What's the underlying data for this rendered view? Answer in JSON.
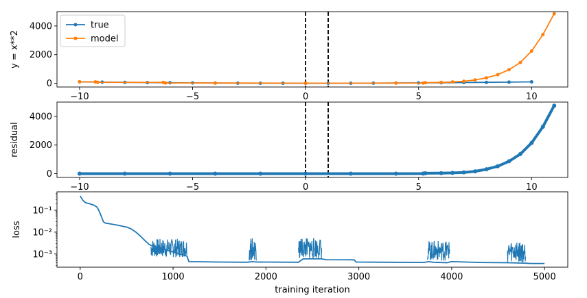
{
  "chart_data": [
    {
      "type": "line",
      "ylabel": "y = x**2",
      "xlabel": "",
      "xlim": [
        -11,
        11.6
      ],
      "ylim": [
        -260,
        5000
      ],
      "xticks": [
        -10,
        -5,
        0,
        5,
        10
      ],
      "yticks": [
        0,
        2000,
        4000
      ],
      "vlines": [
        0,
        1
      ],
      "legend": {
        "placement": "top-left",
        "entries": [
          "true",
          "model"
        ]
      },
      "series": [
        {
          "name": "true",
          "color": "#1f77b4",
          "x": [
            -10,
            -9,
            -8,
            -7,
            -6,
            -5,
            -4,
            -3,
            -2,
            -1,
            0,
            1,
            2,
            3,
            4,
            5,
            6,
            7,
            8,
            9,
            10
          ],
          "values": [
            100,
            81,
            64,
            49,
            36,
            25,
            16,
            9,
            4,
            1,
            0,
            1,
            4,
            9,
            16,
            25,
            36,
            49,
            64,
            81,
            100
          ]
        },
        {
          "name": "model",
          "color": "#ff7f0e",
          "x": [
            -10,
            -9.3,
            -9.2,
            -6.3,
            -6.2,
            -4,
            0,
            4,
            5.2,
            5.3,
            6,
            6.5,
            7,
            7.5,
            8,
            8.5,
            9,
            9.5,
            10,
            10.5,
            11
          ],
          "values": [
            105,
            95,
            70,
            60,
            20,
            15,
            10,
            12,
            15,
            40,
            60,
            90,
            140,
            230,
            380,
            600,
            950,
            1450,
            2250,
            3400,
            4850
          ]
        }
      ]
    },
    {
      "type": "scatter",
      "ylabel": "residual",
      "xlabel": "",
      "xlim": [
        -11,
        11.6
      ],
      "ylim": [
        -260,
        5000
      ],
      "xticks": [
        -10,
        -5,
        0,
        5,
        10
      ],
      "yticks": [
        0,
        2000,
        4000
      ],
      "vlines": [
        0,
        1
      ],
      "series": [
        {
          "color": "#1f77b4",
          "x": [
            -10,
            -8,
            -6,
            -4,
            -2,
            0,
            2,
            4,
            5.2,
            5.3,
            6,
            6.5,
            7,
            7.5,
            8,
            8.5,
            9,
            9.5,
            10,
            10.5,
            11
          ],
          "values": [
            5,
            5,
            5,
            5,
            5,
            5,
            5,
            5,
            8,
            30,
            40,
            55,
            90,
            165,
            310,
            520,
            870,
            1370,
            2150,
            3280,
            4750
          ]
        }
      ]
    },
    {
      "type": "line",
      "ylabel": "loss",
      "xlabel": "training iteration",
      "yscale": "log",
      "xlim": [
        -250,
        5250
      ],
      "ylim": [
        0.00025,
        0.7
      ],
      "xticks": [
        0,
        1000,
        2000,
        3000,
        4000,
        5000
      ],
      "yticks": [
        0.001,
        0.01,
        0.1
      ],
      "ytick_labels": [
        "10⁻³",
        "10⁻²",
        "10⁻¹"
      ],
      "series": [
        {
          "color": "#1f77b4",
          "x": [
            0,
            30,
            60,
            100,
            150,
            180,
            200,
            230,
            250,
            270,
            300,
            400,
            500,
            550,
            600,
            650,
            700,
            740,
            760,
            1150,
            1170,
            1500,
            1800,
            1850,
            1900,
            2350,
            2400,
            2600,
            2650,
            2950,
            2970,
            3300,
            3700,
            3750,
            3800,
            3950,
            4000,
            4300,
            4600,
            4800,
            4850,
            5000
          ],
          "values": [
            0.45,
            0.28,
            0.22,
            0.2,
            0.17,
            0.14,
            0.1,
            0.05,
            0.03,
            0.026,
            0.025,
            0.021,
            0.017,
            0.014,
            0.01,
            0.0065,
            0.004,
            0.0028,
            0.0025,
            0.0008,
            0.00045,
            0.00043,
            0.00042,
            0.00045,
            0.00043,
            0.00042,
            0.0006,
            0.0006,
            0.00055,
            0.00054,
            0.00043,
            0.00042,
            0.00041,
            0.00045,
            0.00042,
            0.0004,
            0.00045,
            0.00041,
            0.0004,
            0.00038,
            0.00037,
            0.00037
          ]
        }
      ],
      "noise_bands": [
        {
          "x": [
            760,
            1150
          ],
          "low": 0.0007,
          "high": 0.005
        },
        {
          "x": [
            1820,
            1900
          ],
          "low": 0.0005,
          "high": 0.0055
        },
        {
          "x": [
            2350,
            2600
          ],
          "low": 0.0006,
          "high": 0.0055
        },
        {
          "x": [
            3740,
            3980
          ],
          "low": 0.0005,
          "high": 0.004
        },
        {
          "x": [
            4600,
            4800
          ],
          "low": 0.0004,
          "high": 0.004
        }
      ]
    }
  ]
}
